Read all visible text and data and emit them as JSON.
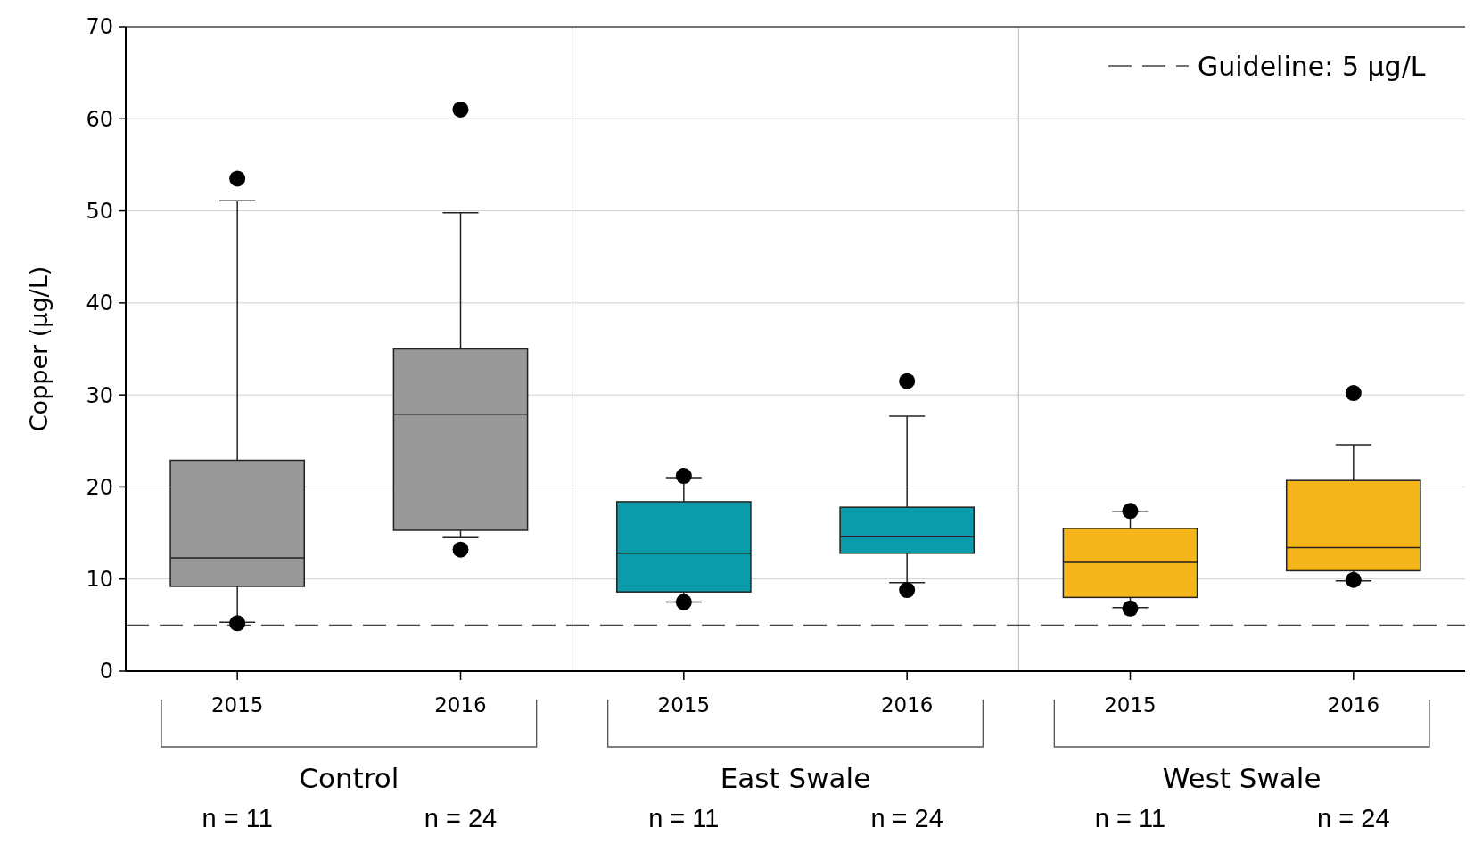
{
  "chart_data": {
    "type": "box",
    "ylabel": "Copper (µg/L)",
    "categories": [
      "2015",
      "2016",
      "2015",
      "2016",
      "2015",
      "2016"
    ],
    "colors": [
      "#999999",
      "#999999",
      "#0b9bab",
      "#0b9bab",
      "#f5b61b",
      "#f5b61b"
    ],
    "boxes": [
      {
        "low": 5.3,
        "q1": 9.2,
        "median": 12.3,
        "q3": 22.9,
        "high": 51.1,
        "outliers": [
          53.5,
          5.2
        ]
      },
      {
        "low": 14.5,
        "q1": 15.3,
        "median": 27.9,
        "q3": 35.0,
        "high": 49.8,
        "outliers": [
          61.0,
          13.2
        ]
      },
      {
        "low": 7.5,
        "q1": 8.6,
        "median": 12.8,
        "q3": 18.4,
        "high": 21.0,
        "outliers": [
          21.2,
          7.5
        ]
      },
      {
        "low": 9.6,
        "q1": 12.8,
        "median": 14.6,
        "q3": 17.8,
        "high": 27.7,
        "outliers": [
          31.5,
          8.8
        ]
      },
      {
        "low": 6.9,
        "q1": 8.0,
        "median": 11.8,
        "q3": 15.5,
        "high": 17.3,
        "outliers": [
          17.4,
          6.8
        ]
      },
      {
        "low": 9.8,
        "q1": 10.9,
        "median": 13.4,
        "q3": 20.7,
        "high": 24.6,
        "outliers": [
          30.2,
          9.9
        ]
      }
    ],
    "ylim": [
      0,
      70
    ],
    "yticks": [
      0,
      10,
      20,
      30,
      40,
      50,
      60,
      70
    ],
    "grid": "y",
    "legend": "top right",
    "ref_lines": [
      {
        "axis": "y",
        "value": 5,
        "label": "Guideline: 5 µg/L",
        "line_style": "dashed"
      }
    ],
    "annotations": [
      "Control",
      "East Swale",
      "West Swale",
      "n = 11",
      "n = 24",
      "n = 11",
      "n = 24",
      "n = 11",
      "n = 24"
    ]
  }
}
